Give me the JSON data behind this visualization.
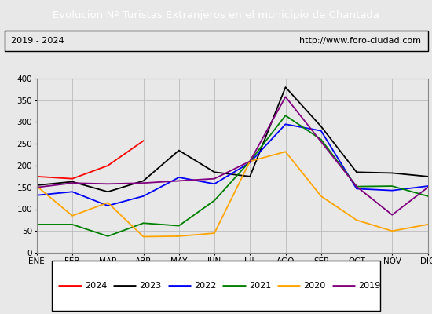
{
  "title": "Evolucion Nº Turistas Extranjeros en el municipio de Chantada",
  "subtitle_left": "2019 - 2024",
  "subtitle_right": "http://www.foro-ciudad.com",
  "title_bg": "#4a86c8",
  "title_color": "white",
  "months": [
    "ENE",
    "FEB",
    "MAR",
    "ABR",
    "MAY",
    "JUN",
    "JUL",
    "AGO",
    "SEP",
    "OCT",
    "NOV",
    "DIC"
  ],
  "ylim": [
    0,
    400
  ],
  "yticks": [
    0,
    50,
    100,
    150,
    200,
    250,
    300,
    350,
    400
  ],
  "series": {
    "2024": {
      "color": "red",
      "data": [
        175,
        170,
        200,
        257,
        null,
        null,
        null,
        null,
        null,
        null,
        null,
        null
      ]
    },
    "2023": {
      "color": "black",
      "data": [
        155,
        163,
        140,
        165,
        235,
        185,
        175,
        380,
        290,
        185,
        183,
        175
      ]
    },
    "2022": {
      "color": "blue",
      "data": [
        132,
        140,
        108,
        130,
        173,
        158,
        207,
        295,
        280,
        147,
        143,
        153
      ]
    },
    "2021": {
      "color": "green",
      "data": [
        65,
        65,
        38,
        68,
        62,
        120,
        210,
        315,
        260,
        152,
        153,
        130
      ]
    },
    "2020": {
      "color": "orange",
      "data": [
        153,
        85,
        115,
        37,
        38,
        45,
        210,
        232,
        130,
        75,
        50,
        65
      ]
    },
    "2019": {
      "color": "purple",
      "data": [
        150,
        160,
        158,
        160,
        165,
        170,
        210,
        358,
        255,
        152,
        87,
        150
      ]
    }
  },
  "legend_order": [
    "2024",
    "2023",
    "2022",
    "2021",
    "2020",
    "2019"
  ],
  "background_color": "#e8e8e8",
  "plot_bg": "#e8e8e8",
  "grid_color": "#bbbbbb"
}
